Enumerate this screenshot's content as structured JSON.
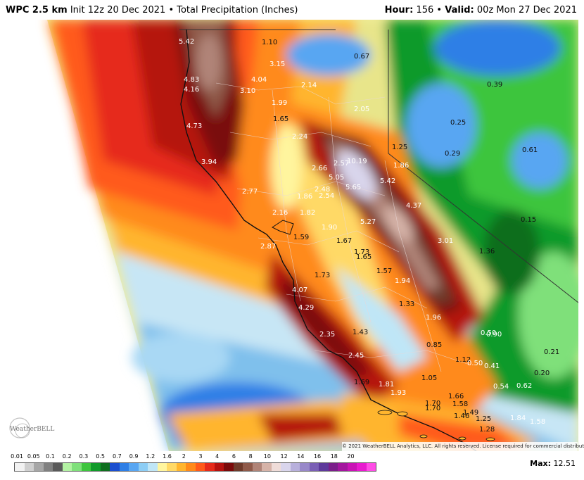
{
  "header": {
    "product": "WPC 2.5 km",
    "init": "Init 12z 20 Dec 2021",
    "separator": "•",
    "field": "Total Precipitation (Inches)",
    "hour_label": "Hour:",
    "hour_value": "156",
    "valid_label": "Valid:",
    "valid_value": "00z Mon 27 Dec 2021"
  },
  "copyright": "© 2021 WeatherBELL Analytics, LLC. All rights reserved. License required for commercial distribution.",
  "logo_text": "WeatherBELL",
  "max": {
    "label": "Max:",
    "value": "12.51"
  },
  "legend": {
    "ticks": [
      "0.01",
      "0.05",
      "0.1",
      "0.2",
      "0.3",
      "0.5",
      "0.7",
      "0.9",
      "1.2",
      "1.6",
      "2",
      "3",
      "4",
      "6",
      "8",
      "10",
      "12",
      "14",
      "16",
      "18",
      "20"
    ],
    "colors": [
      "#f2f2f2",
      "#cfcfcf",
      "#a6a6a6",
      "#808080",
      "#5a5a5a",
      "#b3f2a3",
      "#7fe07a",
      "#3ec53e",
      "#119a2a",
      "#0f6e1f",
      "#1c4fcf",
      "#2f7fe6",
      "#58a6f2",
      "#8ccdf5",
      "#bfe6f7",
      "#fff59e",
      "#ffd966",
      "#ffb52e",
      "#ff8a1a",
      "#ff5a1a",
      "#e62a1a",
      "#b5120f",
      "#7a0a0a",
      "#6e3a2a",
      "#8f5a4a",
      "#b08478",
      "#d6b3a8",
      "#efdcd8",
      "#d9d5ec",
      "#b8b0dc",
      "#9888c9",
      "#7a5fb5",
      "#5e3a9b",
      "#7a1f8a",
      "#a3179e",
      "#c914b5",
      "#e81bcf",
      "#ff4ce6"
    ]
  },
  "labels": [
    {
      "t": "5.42",
      "c": "w"
    },
    {
      "t": "1.10",
      "c": "d"
    },
    {
      "t": "3.15",
      "c": "w"
    },
    {
      "t": "0.67",
      "c": "d"
    },
    {
      "t": "4.83",
      "c": "w"
    },
    {
      "t": "4.16",
      "c": "w"
    },
    {
      "t": "4.04",
      "c": "w"
    },
    {
      "t": "3.10",
      "c": "w"
    },
    {
      "t": "2.14",
      "c": "w"
    },
    {
      "t": "0.39",
      "c": "d"
    },
    {
      "t": "1.99",
      "c": "w"
    },
    {
      "t": "2.05",
      "c": "w"
    },
    {
      "t": "1.65",
      "c": "d"
    },
    {
      "t": "4.73",
      "c": "w"
    },
    {
      "t": "0.25",
      "c": "d"
    },
    {
      "t": "2.24",
      "c": "w"
    },
    {
      "t": "1.25",
      "c": "d"
    },
    {
      "t": "0.29",
      "c": "d"
    },
    {
      "t": "0.61",
      "c": "d"
    },
    {
      "t": "3.94",
      "c": "w"
    },
    {
      "t": "2.57",
      "c": "w"
    },
    {
      "t": "10.19",
      "c": "w"
    },
    {
      "t": "1.86",
      "c": "w"
    },
    {
      "t": "2.66",
      "c": "w"
    },
    {
      "t": "5.05",
      "c": "w"
    },
    {
      "t": "5.42",
      "c": "w"
    },
    {
      "t": "2.77",
      "c": "w"
    },
    {
      "t": "1.86",
      "c": "w"
    },
    {
      "t": "2.48",
      "c": "w"
    },
    {
      "t": "2.54",
      "c": "w"
    },
    {
      "t": "5.65",
      "c": "w"
    },
    {
      "t": "4.37",
      "c": "w"
    },
    {
      "t": "2.16",
      "c": "w"
    },
    {
      "t": "1.82",
      "c": "w"
    },
    {
      "t": "0.15",
      "c": "d"
    },
    {
      "t": "5.27",
      "c": "w"
    },
    {
      "t": "1.90",
      "c": "w"
    },
    {
      "t": "1.59",
      "c": "d"
    },
    {
      "t": "1.67",
      "c": "d"
    },
    {
      "t": "3.01",
      "c": "w"
    },
    {
      "t": "2.87",
      "c": "w"
    },
    {
      "t": "1.73",
      "c": "d"
    },
    {
      "t": "1.36",
      "c": "d"
    },
    {
      "t": "1.65",
      "c": "d"
    },
    {
      "t": "1.57",
      "c": "d"
    },
    {
      "t": "1.73",
      "c": "d"
    },
    {
      "t": "1.94",
      "c": "w"
    },
    {
      "t": "4.07",
      "c": "w"
    },
    {
      "t": "1.33",
      "c": "d"
    },
    {
      "t": "4.29",
      "c": "w"
    },
    {
      "t": "1.96",
      "c": "w"
    },
    {
      "t": "0.50",
      "c": "w"
    },
    {
      "t": "0.90",
      "c": "w"
    },
    {
      "t": "2.35",
      "c": "w"
    },
    {
      "t": "1.43",
      "c": "d"
    },
    {
      "t": "0.85",
      "c": "d"
    },
    {
      "t": "0.21",
      "c": "d"
    },
    {
      "t": "2.45",
      "c": "w"
    },
    {
      "t": "1.12",
      "c": "d"
    },
    {
      "t": "0.50",
      "c": "w"
    },
    {
      "t": "0.41",
      "c": "w"
    },
    {
      "t": "0.20",
      "c": "d"
    },
    {
      "t": "1.05",
      "c": "d"
    },
    {
      "t": "1.69",
      "c": "d"
    },
    {
      "t": "1.81",
      "c": "w"
    },
    {
      "t": "0.54",
      "c": "w"
    },
    {
      "t": "0.62",
      "c": "w"
    },
    {
      "t": "1.93",
      "c": "w"
    },
    {
      "t": "1.66",
      "c": "d"
    },
    {
      "t": "1.70",
      "c": "d"
    },
    {
      "t": "1.58",
      "c": "d"
    },
    {
      "t": "1.70",
      "c": "d"
    },
    {
      "t": "1.49",
      "c": "d"
    },
    {
      "t": "1.46",
      "c": "d"
    },
    {
      "t": "1.25",
      "c": "d"
    },
    {
      "t": "1.84",
      "c": "w"
    },
    {
      "t": "1.58",
      "c": "w"
    },
    {
      "t": "1.28",
      "c": "d"
    }
  ]
}
